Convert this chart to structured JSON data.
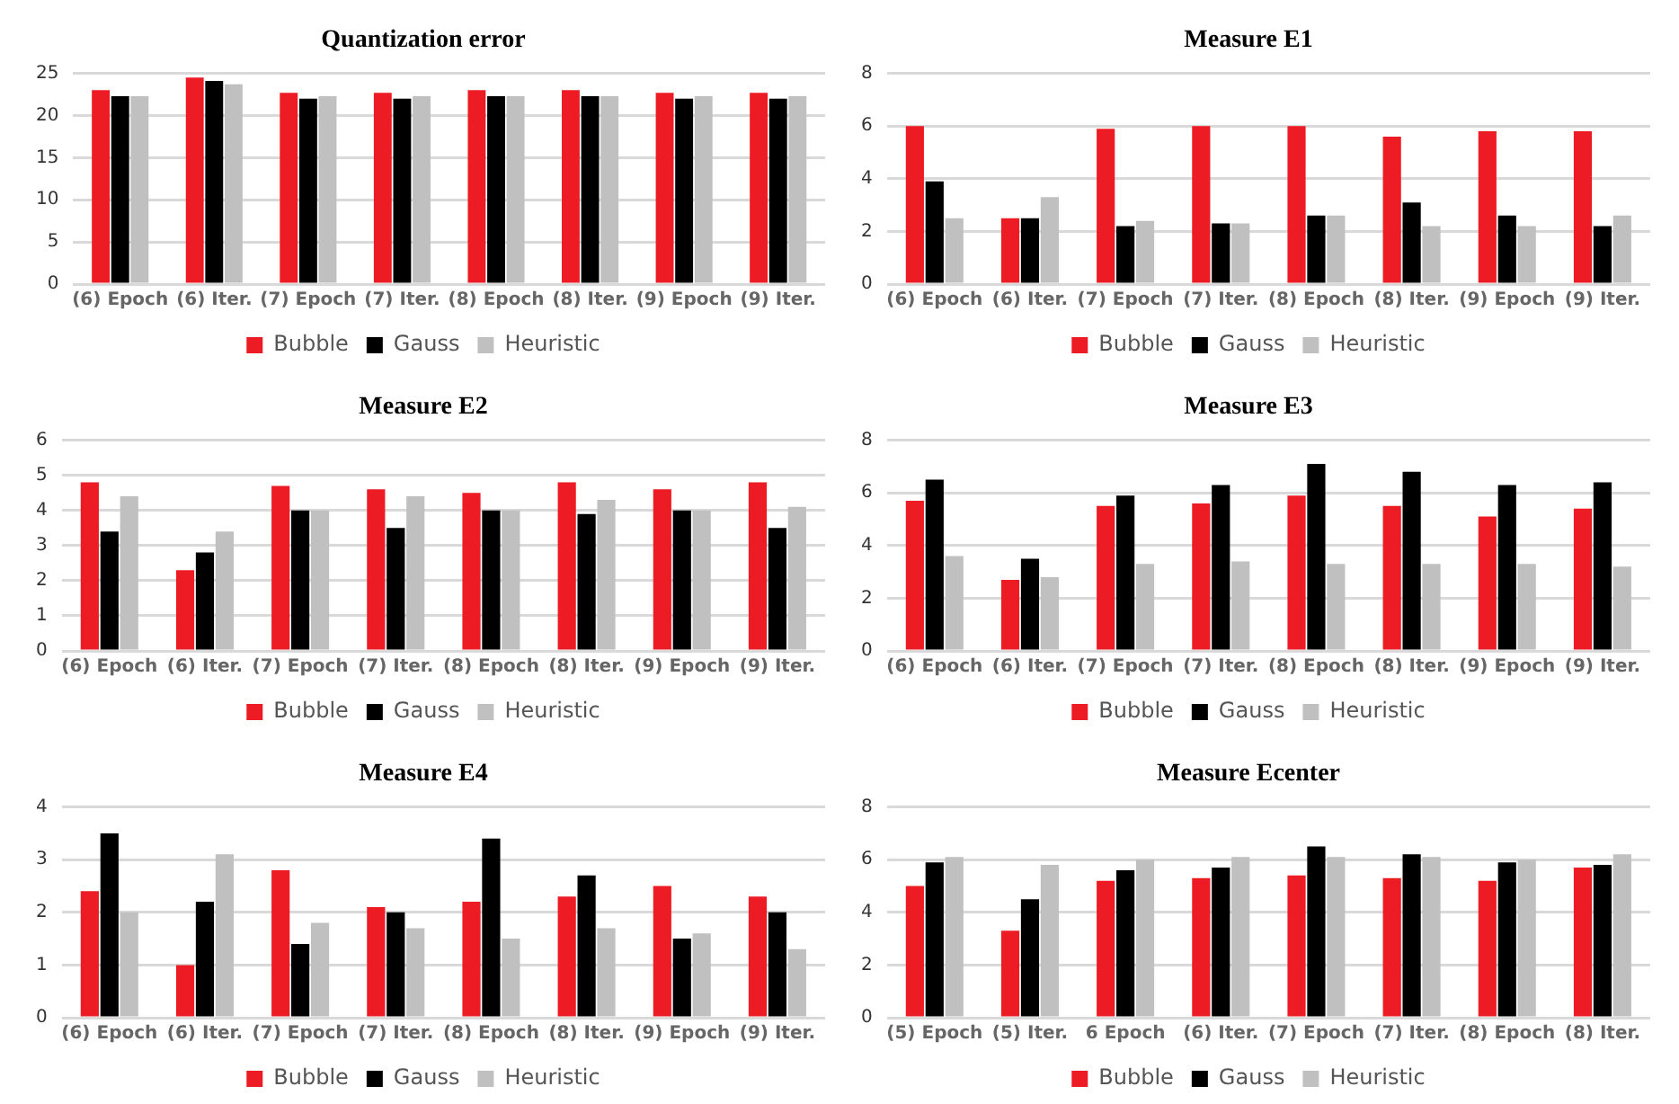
{
  "chart_data": [
    {
      "type": "bar",
      "title": "Quantization error",
      "categories": [
        "(6) Epoch",
        "(6) Iter.",
        "(7) Epoch",
        "(7) Iter.",
        "(8) Epoch",
        "(8) Iter.",
        "(9) Epoch",
        "(9) Iter."
      ],
      "series": [
        {
          "name": "Bubble",
          "color": "#ed1c24",
          "values": [
            23.0,
            24.5,
            22.7,
            22.7,
            23.0,
            23.0,
            22.7,
            22.7
          ]
        },
        {
          "name": "Gauss",
          "color": "#000000",
          "values": [
            22.3,
            24.1,
            22.0,
            22.0,
            22.3,
            22.3,
            22.0,
            22.0
          ]
        },
        {
          "name": "Heuristic",
          "color": "#c0c0c0",
          "values": [
            22.3,
            23.7,
            22.3,
            22.3,
            22.3,
            22.3,
            22.3,
            22.3
          ]
        }
      ],
      "ylim": [
        0,
        25
      ],
      "yticks": [
        0,
        5,
        10,
        15,
        20,
        25
      ],
      "grid": "y",
      "legend": "bottom"
    },
    {
      "type": "bar",
      "title": "Measure E1",
      "categories": [
        "(6) Epoch",
        "(6) Iter.",
        "(7) Epoch",
        "(7) Iter.",
        "(8) Epoch",
        "(8) Iter.",
        "(9) Epoch",
        "(9) Iter."
      ],
      "series": [
        {
          "name": "Bubble",
          "color": "#ed1c24",
          "values": [
            6.0,
            2.5,
            5.9,
            6.0,
            6.0,
            5.6,
            5.8,
            5.8
          ]
        },
        {
          "name": "Gauss",
          "color": "#000000",
          "values": [
            3.9,
            2.5,
            2.2,
            2.3,
            2.6,
            3.1,
            2.6,
            2.2
          ]
        },
        {
          "name": "Heuristic",
          "color": "#c0c0c0",
          "values": [
            2.5,
            3.3,
            2.4,
            2.3,
            2.6,
            2.2,
            2.2,
            2.6
          ]
        }
      ],
      "ylim": [
        0,
        8
      ],
      "yticks": [
        0,
        2,
        4,
        6,
        8
      ],
      "grid": "y",
      "legend": "bottom"
    },
    {
      "type": "bar",
      "title": "Measure E2",
      "categories": [
        "(6) Epoch",
        "(6) Iter.",
        "(7) Epoch",
        "(7) Iter.",
        "(8) Epoch",
        "(8) Iter.",
        "(9) Epoch",
        "(9) Iter."
      ],
      "series": [
        {
          "name": "Bubble",
          "color": "#ed1c24",
          "values": [
            4.8,
            2.3,
            4.7,
            4.6,
            4.5,
            4.8,
            4.6,
            4.8
          ]
        },
        {
          "name": "Gauss",
          "color": "#000000",
          "values": [
            3.4,
            2.8,
            4.0,
            3.5,
            4.0,
            3.9,
            4.0,
            3.5
          ]
        },
        {
          "name": "Heuristic",
          "color": "#c0c0c0",
          "values": [
            4.4,
            3.4,
            4.0,
            4.4,
            4.0,
            4.3,
            4.0,
            4.1
          ]
        }
      ],
      "ylim": [
        0,
        6
      ],
      "yticks": [
        0,
        1,
        2,
        3,
        4,
        5,
        6
      ],
      "grid": "y",
      "legend": "bottom"
    },
    {
      "type": "bar",
      "title": "Measure E3",
      "categories": [
        "(6) Epoch",
        "(6) Iter.",
        "(7) Epoch",
        "(7) Iter.",
        "(8) Epoch",
        "(8) Iter.",
        "(9) Epoch",
        "(9) Iter."
      ],
      "series": [
        {
          "name": "Bubble",
          "color": "#ed1c24",
          "values": [
            5.7,
            2.7,
            5.5,
            5.6,
            5.9,
            5.5,
            5.1,
            5.4
          ]
        },
        {
          "name": "Gauss",
          "color": "#000000",
          "values": [
            6.5,
            3.5,
            5.9,
            6.3,
            7.1,
            6.8,
            6.3,
            6.4
          ]
        },
        {
          "name": "Heuristic",
          "color": "#c0c0c0",
          "values": [
            3.6,
            2.8,
            3.3,
            3.4,
            3.3,
            3.3,
            3.3,
            3.2
          ]
        }
      ],
      "ylim": [
        0,
        8
      ],
      "yticks": [
        0,
        2,
        4,
        6,
        8
      ],
      "grid": "y",
      "legend": "bottom"
    },
    {
      "type": "bar",
      "title": "Measure E4",
      "categories": [
        "(6) Epoch",
        "(6) Iter.",
        "(7) Epoch",
        "(7) Iter.",
        "(8) Epoch",
        "(8) Iter.",
        "(9) Epoch",
        "(9) Iter."
      ],
      "series": [
        {
          "name": "Bubble",
          "color": "#ed1c24",
          "values": [
            2.4,
            1.0,
            2.8,
            2.1,
            2.2,
            2.3,
            2.5,
            2.3
          ]
        },
        {
          "name": "Gauss",
          "color": "#000000",
          "values": [
            3.5,
            2.2,
            1.4,
            2.0,
            3.4,
            2.7,
            1.5,
            2.0
          ]
        },
        {
          "name": "Heuristic",
          "color": "#c0c0c0",
          "values": [
            2.0,
            3.1,
            1.8,
            1.7,
            1.5,
            1.7,
            1.6,
            1.3
          ]
        }
      ],
      "ylim": [
        0,
        4
      ],
      "yticks": [
        0,
        1,
        2,
        3,
        4
      ],
      "grid": "y",
      "legend": "bottom"
    },
    {
      "type": "bar",
      "title": "Measure Ecenter",
      "categories": [
        "(5) Epoch",
        "(5) Iter.",
        "6 Epoch",
        "(6) Iter.",
        "(7) Epoch",
        "(7) Iter.",
        "(8) Epoch",
        "(8) Iter."
      ],
      "series": [
        {
          "name": "Bubble",
          "color": "#ed1c24",
          "values": [
            5.0,
            3.3,
            5.2,
            5.3,
            5.4,
            5.3,
            5.2,
            5.7
          ]
        },
        {
          "name": "Gauss",
          "color": "#000000",
          "values": [
            5.9,
            4.5,
            5.6,
            5.7,
            6.5,
            6.2,
            5.9,
            5.8
          ]
        },
        {
          "name": "Heuristic",
          "color": "#c0c0c0",
          "values": [
            6.1,
            5.8,
            6.0,
            6.1,
            6.1,
            6.1,
            6.0,
            6.2
          ]
        }
      ],
      "ylim": [
        0,
        8
      ],
      "yticks": [
        0,
        2,
        4,
        6,
        8
      ],
      "grid": "y",
      "legend": "bottom"
    }
  ]
}
